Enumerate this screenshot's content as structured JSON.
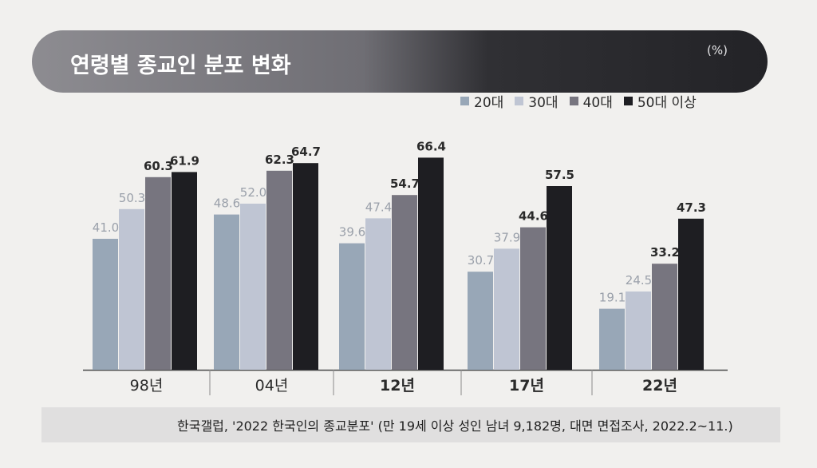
{
  "title": "연령별 종교인 분포 변화",
  "unit": "(%)",
  "source": "한국갤럽, '2022 한국인의 종교분포' (만 19세 이상 성인 남녀 9,182명, 대면 면접조사, 2022.2~11.)",
  "chart_data": {
    "type": "bar",
    "title": "연령별 종교인 분포 변화",
    "unit": "(%)",
    "categories": [
      "98년",
      "04년",
      "12년",
      "17년",
      "22년"
    ],
    "series": [
      {
        "name": "20대",
        "color": "#98a7b7",
        "values": [
          41.0,
          48.6,
          39.6,
          30.7,
          19.1
        ]
      },
      {
        "name": "30대",
        "color": "#bfc5d3",
        "values": [
          50.3,
          52.0,
          47.4,
          37.9,
          24.5
        ]
      },
      {
        "name": "40대",
        "color": "#77757f",
        "values": [
          60.3,
          62.3,
          54.7,
          44.6,
          33.2
        ]
      },
      {
        "name": "50대 이상",
        "color": "#1e1e22",
        "values": [
          61.9,
          64.7,
          66.4,
          57.5,
          47.3
        ]
      }
    ],
    "present": [
      [
        true,
        true,
        true,
        true
      ],
      [
        true,
        true,
        true,
        true
      ],
      [
        true,
        true,
        true,
        true
      ],
      [
        true,
        true,
        true,
        true
      ],
      [
        true,
        true,
        true,
        true
      ]
    ],
    "label_colors": [
      [
        "#9aa0aa",
        "#9aa0aa",
        "#2a2a2a",
        "#2a2a2a"
      ],
      [
        "#9aa0aa",
        "#9aa0aa",
        "#2a2a2a",
        "#2a2a2a"
      ],
      [
        "#9aa0aa",
        "#9aa0aa",
        "#2a2a2a",
        "#2a2a2a"
      ],
      [
        "#9aa0aa",
        "#9aa0aa",
        "#2a2a2a",
        "#2a2a2a"
      ],
      [
        "#9aa0aa",
        "#9aa0aa",
        "#2a2a2a",
        "#2a2a2a"
      ]
    ],
    "ylim": [
      0,
      70
    ],
    "grid": false,
    "legend_position": "top-right"
  }
}
